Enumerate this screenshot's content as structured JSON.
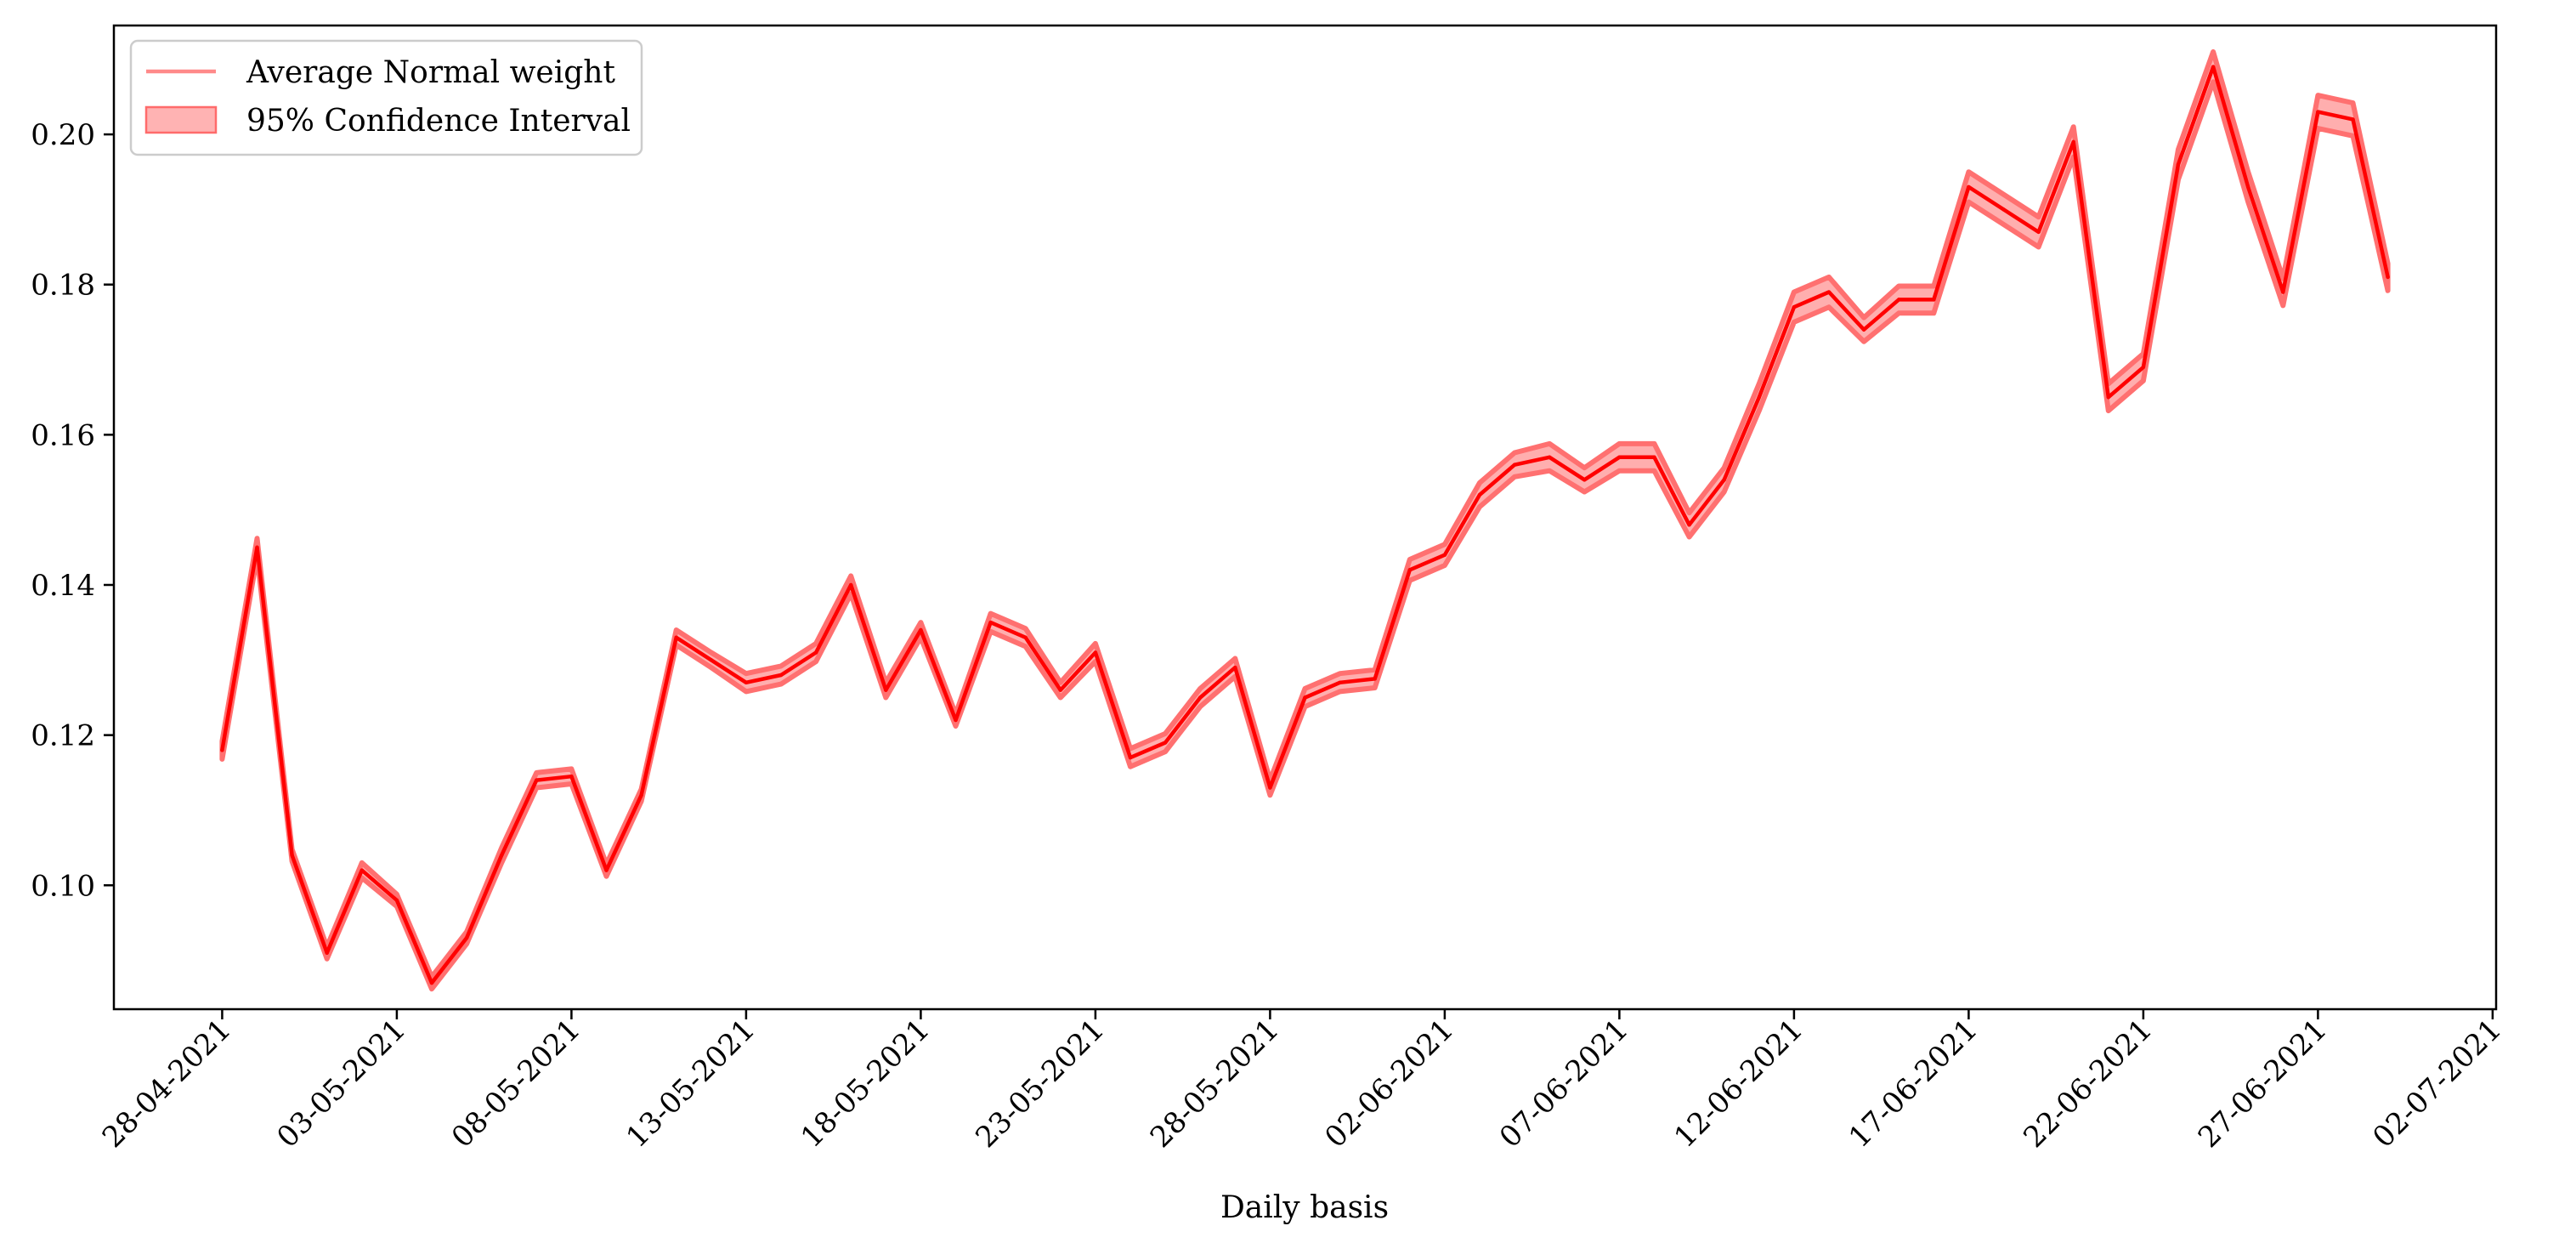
{
  "chart_data": {
    "type": "line",
    "title": "",
    "xlabel": "Daily basis",
    "ylabel": "",
    "ylim": [
      0.0835,
      0.2145
    ],
    "yticks": [
      0.1,
      0.12,
      0.14,
      0.16,
      0.18,
      0.2
    ],
    "ytick_labels": [
      "0.10",
      "0.12",
      "0.14",
      "0.16",
      "0.18",
      "0.20"
    ],
    "xtick_labels": [
      "28-04-2021",
      "03-05-2021",
      "08-05-2021",
      "13-05-2021",
      "18-05-2021",
      "23-05-2021",
      "28-05-2021",
      "02-06-2021",
      "07-06-2021",
      "12-06-2021",
      "17-06-2021",
      "22-06-2021",
      "27-06-2021",
      "02-07-2021"
    ],
    "xtick_day_offsets": [
      0,
      5,
      10,
      15,
      20,
      25,
      30,
      35,
      40,
      45,
      50,
      55,
      60,
      65
    ],
    "start_date": "28-04-2021",
    "x_day_range": [
      -3.1,
      65.1
    ],
    "legend": {
      "position": "top-left",
      "entries": [
        {
          "label": "Average Normal weight",
          "kind": "line"
        },
        {
          "label": "95% Confidence Interval",
          "kind": "band"
        }
      ]
    },
    "series": [
      {
        "name": "Average Normal weight",
        "color": "#ff0000",
        "x_days": [
          0,
          1,
          2,
          3,
          4,
          5,
          6,
          7,
          8,
          9,
          10,
          11,
          12,
          13,
          14,
          15,
          16,
          17,
          18,
          19,
          20,
          21,
          22,
          23,
          24,
          25,
          26,
          27,
          28,
          29,
          30,
          31,
          32,
          33,
          34,
          35,
          36,
          37,
          38,
          39,
          40,
          41,
          42,
          43,
          44,
          45,
          46,
          47,
          48,
          49,
          50,
          51,
          52,
          53,
          54,
          55,
          56,
          57,
          58,
          59,
          60,
          61,
          62
        ],
        "values": [
          0.118,
          0.145,
          0.104,
          0.091,
          0.102,
          0.098,
          0.087,
          0.093,
          0.104,
          0.114,
          0.1145,
          0.102,
          0.112,
          0.133,
          0.13,
          0.127,
          0.128,
          0.131,
          0.14,
          0.126,
          0.134,
          0.122,
          0.135,
          0.133,
          0.126,
          0.131,
          0.117,
          0.119,
          0.125,
          0.129,
          0.113,
          0.125,
          0.127,
          0.1275,
          0.142,
          0.144,
          0.152,
          0.156,
          0.157,
          0.154,
          0.157,
          0.157,
          0.148,
          0.154,
          0.165,
          0.177,
          0.179,
          0.174,
          0.178,
          0.178,
          0.193,
          0.19,
          0.187,
          0.199,
          0.165,
          0.169,
          0.196,
          0.209,
          0.193,
          0.179,
          0.203,
          0.202,
          0.181
        ],
        "ci_halfwidth": [
          0.0012,
          0.0012,
          0.0008,
          0.0008,
          0.001,
          0.0008,
          0.0008,
          0.0008,
          0.001,
          0.001,
          0.001,
          0.0008,
          0.0008,
          0.001,
          0.001,
          0.0012,
          0.0012,
          0.0012,
          0.0012,
          0.001,
          0.001,
          0.0008,
          0.0012,
          0.0012,
          0.001,
          0.0012,
          0.0012,
          0.0012,
          0.0012,
          0.0012,
          0.001,
          0.0012,
          0.0012,
          0.0012,
          0.0014,
          0.0014,
          0.0016,
          0.0016,
          0.0018,
          0.0016,
          0.0018,
          0.0018,
          0.0016,
          0.0016,
          0.0018,
          0.002,
          0.002,
          0.0016,
          0.0018,
          0.0018,
          0.002,
          0.002,
          0.002,
          0.002,
          0.0018,
          0.0018,
          0.002,
          0.002,
          0.002,
          0.0018,
          0.0022,
          0.0022,
          0.0018
        ]
      }
    ]
  }
}
